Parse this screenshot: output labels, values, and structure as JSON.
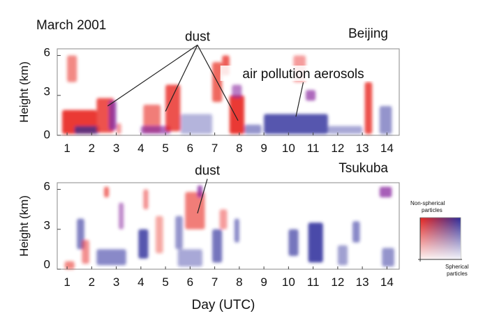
{
  "chart_data": {
    "type": "heatmap",
    "figure_title": "March 2001",
    "xlabel": "Day (UTC)",
    "x_ticks": [
      "1",
      "2",
      "3",
      "4",
      "5",
      "6",
      "7",
      "8",
      "9",
      "10",
      "11",
      "12",
      "13",
      "14"
    ],
    "xlim": [
      0.6,
      14.5
    ],
    "colors": {
      "nonspherical": "#e8261f",
      "spherical": "#2b2b9a",
      "mixed": "#8a2aa0"
    },
    "legend": {
      "top_label_line1": "Non-spherical",
      "top_label_line2": "particles",
      "bottom_label_line1": "Spherical",
      "bottom_label_line2": "particles"
    },
    "panels": [
      {
        "station": "Beijing",
        "ylabel": "Height (km)",
        "y_ticks": [
          "0",
          "3",
          "6"
        ],
        "ylim": [
          0,
          6.5
        ],
        "annotations": [
          {
            "text": "dust",
            "label_x": 6.3,
            "label_y": 7.1,
            "targets": [
              [
                2.65,
                2.2
              ],
              [
                5.0,
                1.8
              ],
              [
                7.95,
                1.1
              ]
            ]
          },
          {
            "text": "air pollution aerosols",
            "label_x": 10.6,
            "label_y": 4.3,
            "targets": [
              [
                10.3,
                1.4
              ]
            ]
          }
        ],
        "features": [
          {
            "kind": "nonspherical",
            "x0": 0.8,
            "x1": 2.2,
            "y0": 0.1,
            "y1": 1.9,
            "a": 0.9
          },
          {
            "kind": "spherical",
            "x0": 1.3,
            "x1": 2.3,
            "y0": 0.1,
            "y1": 0.7,
            "a": 0.7
          },
          {
            "kind": "nonspherical",
            "x0": 2.2,
            "x1": 2.9,
            "y0": 0.2,
            "y1": 2.8,
            "a": 0.8
          },
          {
            "kind": "mixed",
            "x0": 2.7,
            "x1": 3.0,
            "y0": 0.4,
            "y1": 2.6,
            "a": 0.8
          },
          {
            "kind": "nonspherical",
            "x0": 1.0,
            "x1": 1.4,
            "y0": 4.0,
            "y1": 6.0,
            "a": 0.55
          },
          {
            "kind": "nonspherical",
            "x0": 3.0,
            "x1": 3.2,
            "y0": 0.1,
            "y1": 0.9,
            "a": 0.45
          },
          {
            "kind": "nonspherical",
            "x0": 4.1,
            "x1": 4.8,
            "y0": 0.2,
            "y1": 2.3,
            "a": 0.6
          },
          {
            "kind": "mixed",
            "x0": 4.0,
            "x1": 5.2,
            "y0": 0.1,
            "y1": 0.7,
            "a": 0.7
          },
          {
            "kind": "nonspherical",
            "x0": 5.0,
            "x1": 5.6,
            "y0": 0.3,
            "y1": 3.8,
            "a": 0.8
          },
          {
            "kind": "spherical",
            "x0": 5.6,
            "x1": 6.9,
            "y0": 0.1,
            "y1": 1.6,
            "a": 0.35
          },
          {
            "kind": "nonspherical",
            "x0": 6.9,
            "x1": 7.3,
            "y0": 2.5,
            "y1": 5.5,
            "a": 0.7
          },
          {
            "kind": "nonspherical",
            "x0": 7.3,
            "x1": 7.6,
            "y0": 4.5,
            "y1": 6.0,
            "a": 0.75
          },
          {
            "kind": "nonspherical",
            "x0": 7.6,
            "x1": 8.2,
            "y0": 0.1,
            "y1": 3.0,
            "a": 0.9
          },
          {
            "kind": "mixed",
            "x0": 7.7,
            "x1": 8.1,
            "y0": 2.8,
            "y1": 3.8,
            "a": 0.6
          },
          {
            "kind": "spherical",
            "x0": 8.2,
            "x1": 8.9,
            "y0": 0.1,
            "y1": 0.8,
            "a": 0.5
          },
          {
            "kind": "spherical",
            "x0": 9.0,
            "x1": 11.6,
            "y0": 0.1,
            "y1": 1.6,
            "a": 0.8
          },
          {
            "kind": "nonspherical",
            "x0": 10.2,
            "x1": 10.7,
            "y0": 4.0,
            "y1": 6.0,
            "a": 0.45
          },
          {
            "kind": "mixed",
            "x0": 10.7,
            "x1": 11.1,
            "y0": 2.6,
            "y1": 3.4,
            "a": 0.7
          },
          {
            "kind": "spherical",
            "x0": 11.6,
            "x1": 13.0,
            "y0": 0.1,
            "y1": 0.7,
            "a": 0.4
          },
          {
            "kind": "nonspherical",
            "x0": 13.1,
            "x1": 13.4,
            "y0": 0.1,
            "y1": 4.0,
            "a": 0.8
          },
          {
            "kind": "spherical",
            "x0": 13.7,
            "x1": 14.2,
            "y0": 0.1,
            "y1": 2.2,
            "a": 0.5
          }
        ]
      },
      {
        "station": "Tsukuba",
        "ylabel": "Height (km)",
        "y_ticks": [
          "0",
          "3",
          "6"
        ],
        "ylim": [
          0,
          6.5
        ],
        "annotations": [
          {
            "text": "dust",
            "label_x": 6.7,
            "label_y": 7.1,
            "targets": [
              [
                6.3,
                4.2
              ]
            ]
          }
        ],
        "features": [
          {
            "kind": "nonspherical",
            "x0": 0.9,
            "x1": 1.3,
            "y0": 0.0,
            "y1": 0.6,
            "a": 0.55
          },
          {
            "kind": "spherical",
            "x0": 1.4,
            "x1": 1.7,
            "y0": 1.5,
            "y1": 3.8,
            "a": 0.6
          },
          {
            "kind": "nonspherical",
            "x0": 1.6,
            "x1": 1.9,
            "y0": 0.4,
            "y1": 2.2,
            "a": 0.5
          },
          {
            "kind": "nonspherical",
            "x0": 2.5,
            "x1": 2.7,
            "y0": 5.4,
            "y1": 6.2,
            "a": 0.65
          },
          {
            "kind": "spherical",
            "x0": 2.2,
            "x1": 3.4,
            "y0": 0.3,
            "y1": 1.5,
            "a": 0.55
          },
          {
            "kind": "mixed",
            "x0": 3.1,
            "x1": 3.3,
            "y0": 3.0,
            "y1": 5.0,
            "a": 0.55
          },
          {
            "kind": "spherical",
            "x0": 3.9,
            "x1": 4.3,
            "y0": 0.8,
            "y1": 3.0,
            "a": 0.8
          },
          {
            "kind": "nonspherical",
            "x0": 4.1,
            "x1": 4.3,
            "y0": 4.5,
            "y1": 6.0,
            "a": 0.5
          },
          {
            "kind": "nonspherical",
            "x0": 4.6,
            "x1": 4.9,
            "y0": 1.2,
            "y1": 4.0,
            "a": 0.4
          },
          {
            "kind": "spherical",
            "x0": 5.4,
            "x1": 5.7,
            "y0": 1.5,
            "y1": 4.0,
            "a": 0.5
          },
          {
            "kind": "nonspherical",
            "x0": 5.8,
            "x1": 6.6,
            "y0": 3.0,
            "y1": 5.8,
            "a": 0.6
          },
          {
            "kind": "mixed",
            "x0": 6.3,
            "x1": 6.5,
            "y0": 5.4,
            "y1": 6.3,
            "a": 0.8
          },
          {
            "kind": "spherical",
            "x0": 5.5,
            "x1": 6.5,
            "y0": 0.2,
            "y1": 1.5,
            "a": 0.4
          },
          {
            "kind": "spherical",
            "x0": 6.9,
            "x1": 7.3,
            "y0": 0.5,
            "y1": 3.0,
            "a": 0.65
          },
          {
            "kind": "nonspherical",
            "x0": 7.2,
            "x1": 7.5,
            "y0": 3.0,
            "y1": 4.5,
            "a": 0.45
          },
          {
            "kind": "spherical",
            "x0": 7.8,
            "x1": 8.0,
            "y0": 2.0,
            "y1": 3.8,
            "a": 0.55
          },
          {
            "kind": "spherical",
            "x0": 10.0,
            "x1": 10.4,
            "y0": 1.0,
            "y1": 3.0,
            "a": 0.65
          },
          {
            "kind": "spherical",
            "x0": 10.8,
            "x1": 11.4,
            "y0": 0.5,
            "y1": 3.5,
            "a": 0.85
          },
          {
            "kind": "spherical",
            "x0": 12.0,
            "x1": 12.4,
            "y0": 0.3,
            "y1": 1.8,
            "a": 0.45
          },
          {
            "kind": "spherical",
            "x0": 12.6,
            "x1": 12.9,
            "y0": 2.0,
            "y1": 3.6,
            "a": 0.55
          },
          {
            "kind": "mixed",
            "x0": 13.7,
            "x1": 14.2,
            "y0": 5.4,
            "y1": 6.2,
            "a": 0.75
          },
          {
            "kind": "spherical",
            "x0": 13.8,
            "x1": 14.3,
            "y0": 0.2,
            "y1": 1.6,
            "a": 0.5
          }
        ]
      }
    ]
  }
}
